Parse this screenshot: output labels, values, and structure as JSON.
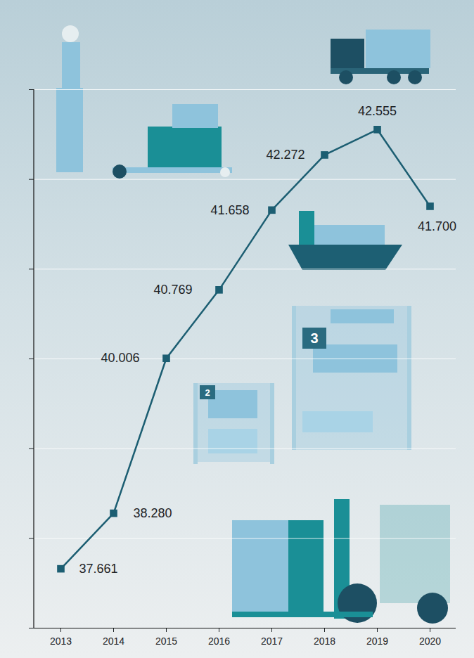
{
  "chart_data": {
    "type": "line",
    "categories": [
      "2013",
      "2014",
      "2015",
      "2016",
      "2017",
      "2018",
      "2019",
      "2020"
    ],
    "values": [
      37661,
      38280,
      40006,
      40769,
      41658,
      42272,
      42555,
      41700
    ],
    "value_labels": [
      "37.661",
      "38.280",
      "40.006",
      "40.769",
      "41.658",
      "42.272",
      "42.555",
      "41.700"
    ],
    "color": "#1c5e72",
    "marker": "square",
    "ylim": [
      37000,
      43000
    ],
    "yticks": [
      37000,
      38000,
      39000,
      40000,
      41000,
      42000,
      43000
    ],
    "grid": true,
    "data_labels": true,
    "tick_labels": "x"
  }
}
